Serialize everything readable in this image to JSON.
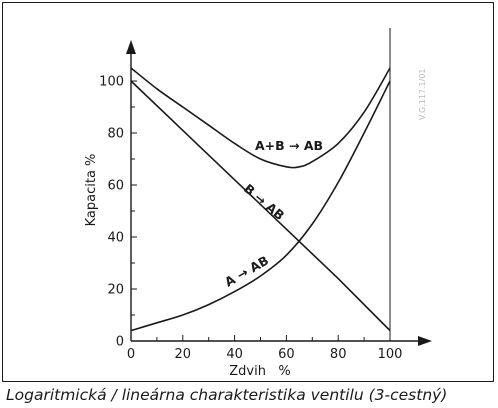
{
  "caption": "Logaritmická / lineárna charakteristika ventilu (3-cestný)",
  "watermark": "V.G.117.1/01",
  "chart_data": {
    "type": "line",
    "xlabel": "Zdvih   %",
    "ylabel": "Kapacita %",
    "xlim": [
      0,
      100
    ],
    "ylim": [
      0,
      100
    ],
    "x_ticks": [
      "0",
      "20",
      "40",
      "60",
      "80",
      "100"
    ],
    "y_ticks": [
      "0",
      "20",
      "40",
      "60",
      "80",
      "100"
    ],
    "grid": false,
    "series": [
      {
        "name": "A+B → AB",
        "x": [
          0,
          10,
          20,
          30,
          40,
          50,
          60,
          65,
          70,
          80,
          90,
          100
        ],
        "y": [
          105,
          97,
          90,
          83,
          76,
          70,
          67,
          67,
          69,
          76,
          88,
          105
        ]
      },
      {
        "name": "B → AB",
        "x": [
          0,
          20,
          40,
          60,
          80,
          100
        ],
        "y": [
          100,
          81,
          62,
          43,
          24,
          4
        ]
      },
      {
        "name": "A → AB",
        "x": [
          0,
          10,
          20,
          30,
          40,
          50,
          60,
          70,
          80,
          90,
          100
        ],
        "y": [
          4,
          7,
          10,
          14,
          19,
          25,
          33,
          45,
          61,
          80,
          100
        ]
      }
    ]
  }
}
